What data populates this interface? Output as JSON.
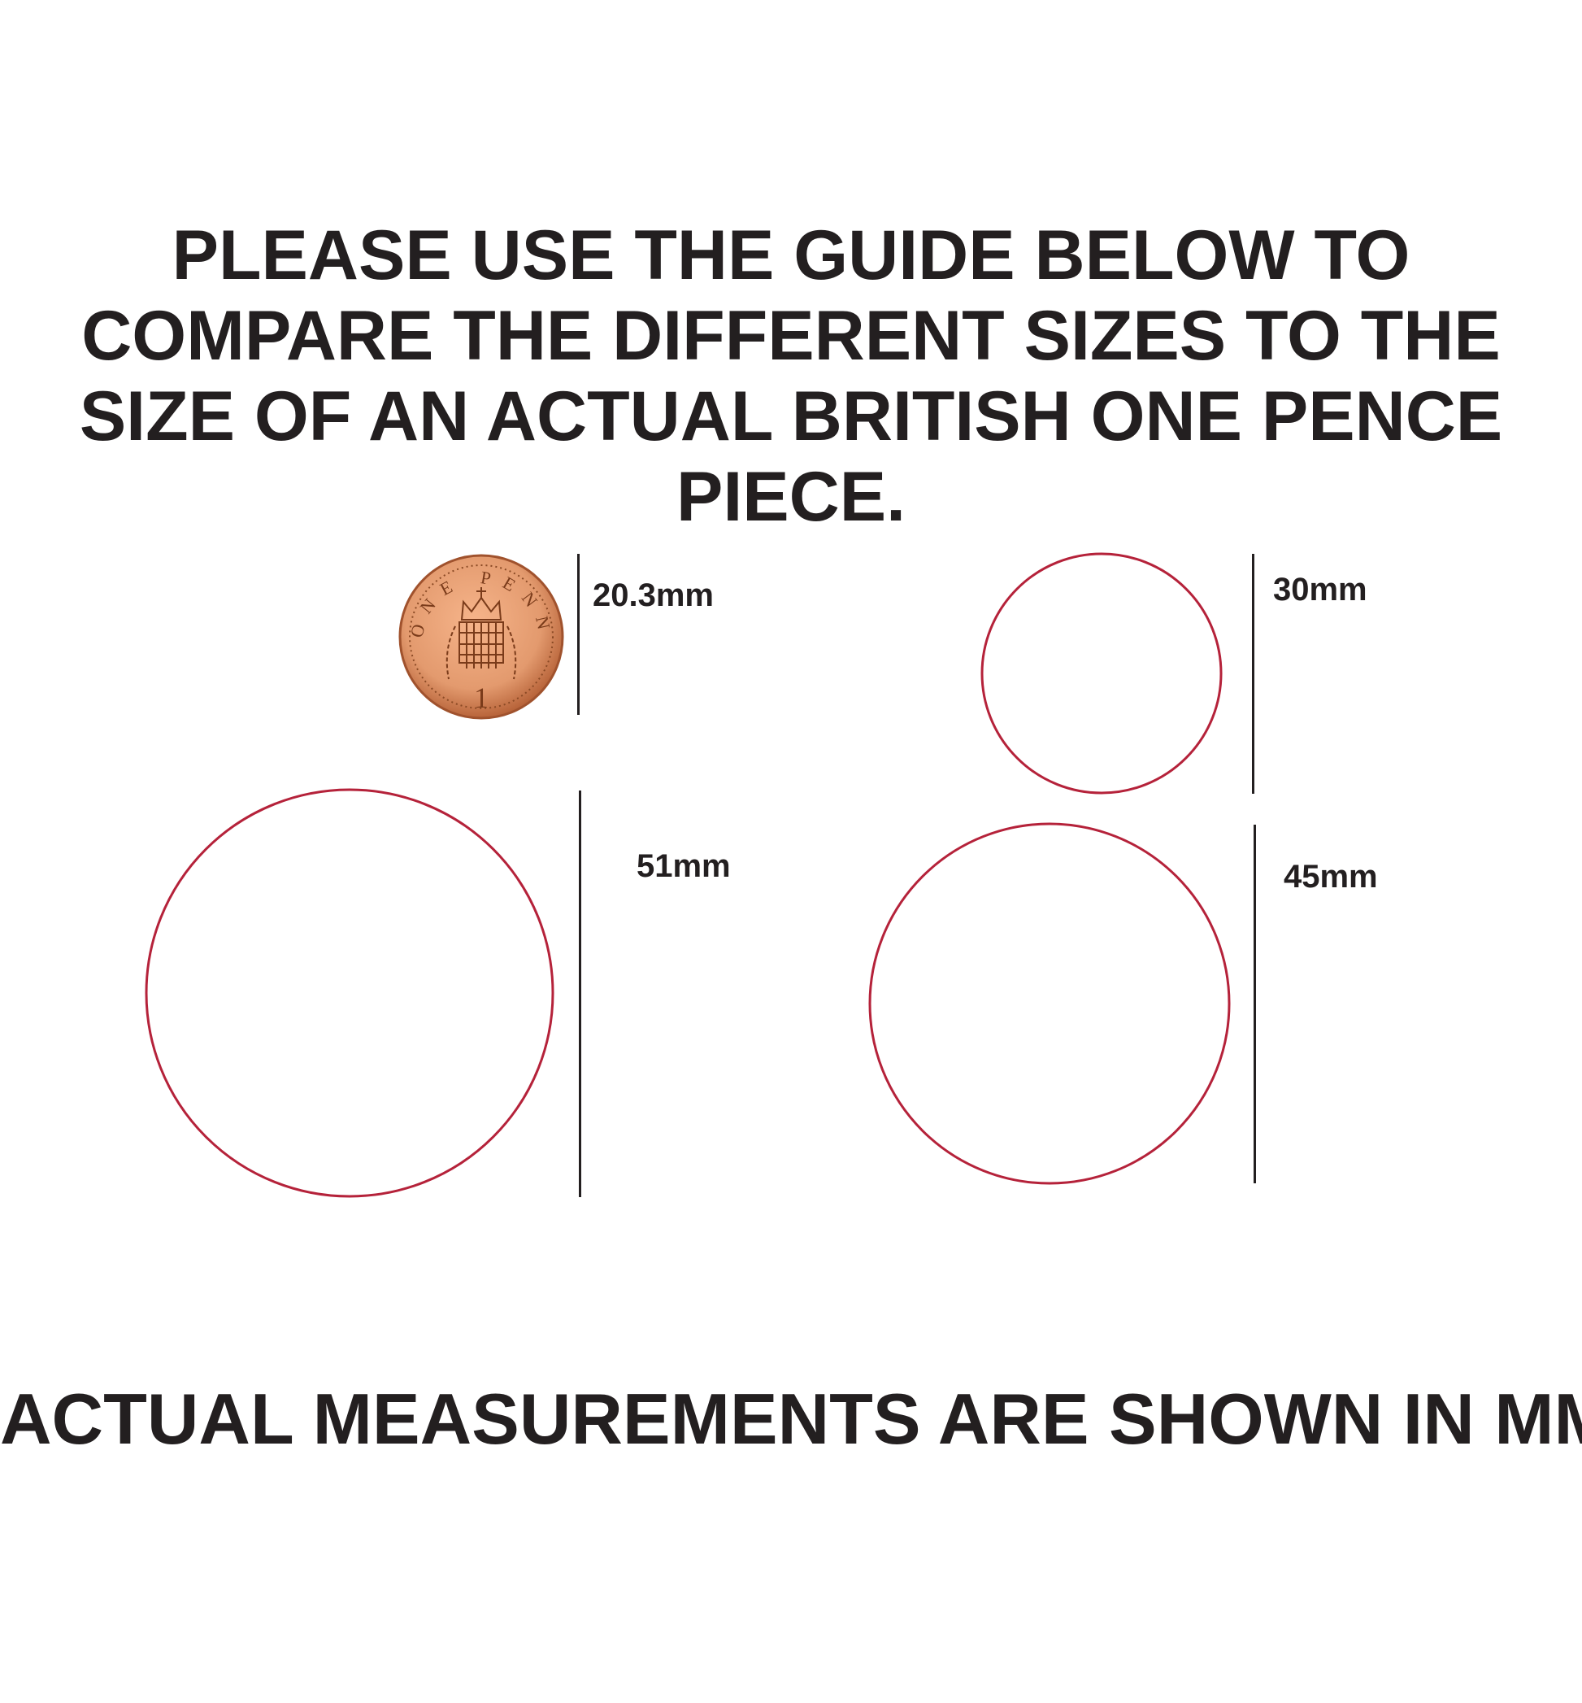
{
  "heading": {
    "lines": [
      "PLEASE USE THE GUIDE BELOW TO",
      "COMPARE THE DIFFERENT SIZES TO THE",
      "SIZE OF AN ACTUAL BRITISH ONE PENCE",
      "PIECE."
    ]
  },
  "coin": {
    "label": "20.3mm",
    "inscription": "ONE PENNY",
    "denomination": "1",
    "color": "#e39a6e"
  },
  "circles": [
    {
      "label": "30mm"
    },
    {
      "label": "51mm"
    },
    {
      "label": "45mm"
    }
  ],
  "circle_color": "#b5223a",
  "footer": "ACTUAL MEASUREMENTS ARE SHOWN IN MM"
}
